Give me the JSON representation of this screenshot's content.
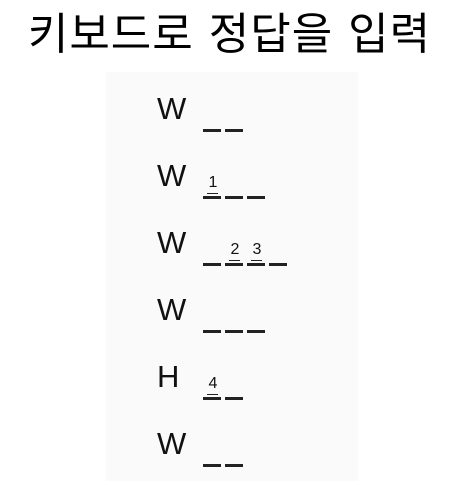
{
  "title": "키보드로 정답을 입력",
  "rows": [
    {
      "letter": "W",
      "slots": [
        "",
        ""
      ]
    },
    {
      "letter": "W",
      "slots": [
        "1",
        "",
        ""
      ]
    },
    {
      "letter": "W",
      "slots": [
        "",
        "2",
        "3",
        ""
      ]
    },
    {
      "letter": "W",
      "slots": [
        "",
        "",
        ""
      ]
    },
    {
      "letter": "H",
      "slots": [
        "4",
        ""
      ]
    },
    {
      "letter": "W",
      "slots": [
        "",
        ""
      ]
    }
  ]
}
